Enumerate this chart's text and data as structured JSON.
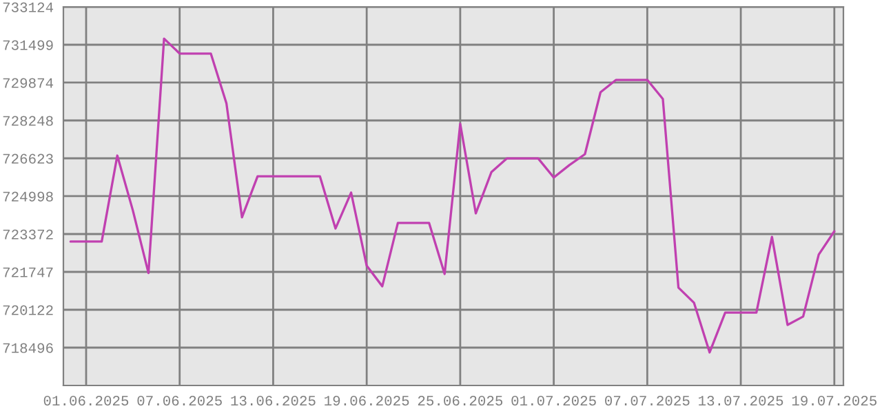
{
  "chart_data": {
    "type": "line",
    "x": [
      "2025-05-31",
      "2025-06-01",
      "2025-06-02",
      "2025-06-03",
      "2025-06-04",
      "2025-06-05",
      "2025-06-06",
      "2025-06-07",
      "2025-06-08",
      "2025-06-09",
      "2025-06-10",
      "2025-06-11",
      "2025-06-12",
      "2025-06-13",
      "2025-06-14",
      "2025-06-15",
      "2025-06-16",
      "2025-06-17",
      "2025-06-18",
      "2025-06-19",
      "2025-06-20",
      "2025-06-21",
      "2025-06-22",
      "2025-06-23",
      "2025-06-24",
      "2025-06-25",
      "2025-06-26",
      "2025-06-27",
      "2025-06-28",
      "2025-06-29",
      "2025-06-30",
      "2025-07-01",
      "2025-07-02",
      "2025-07-03",
      "2025-07-04",
      "2025-07-05",
      "2025-07-06",
      "2025-07-07",
      "2025-07-08",
      "2025-07-09",
      "2025-07-10",
      "2025-07-11",
      "2025-07-12",
      "2025-07-13",
      "2025-07-14",
      "2025-07-15",
      "2025-07-16",
      "2025-07-17",
      "2025-07-18",
      "2025-07-19"
    ],
    "series": [
      {
        "color": "#c040b0",
        "values": [
          723050,
          723050,
          723050,
          726740,
          724380,
          721700,
          731760,
          731120,
          731120,
          731120,
          728990,
          724090,
          725850,
          725850,
          725850,
          725850,
          725850,
          723610,
          725150,
          722010,
          721130,
          723850,
          723850,
          723850,
          721660,
          728100,
          724260,
          726030,
          726620,
          726620,
          726620,
          725800,
          726330,
          726800,
          729460,
          729990,
          729990,
          729990,
          729170,
          721070,
          720420,
          718290,
          720000,
          720000,
          720000,
          723250,
          719470,
          719830,
          722490,
          723490
        ]
      }
    ],
    "xlim": [
      "2025-05-30T13:00",
      "2025-07-19T14:00"
    ],
    "xticks": [
      {
        "value": "2025-06-01",
        "label": "01.06.2025"
      },
      {
        "value": "2025-06-07",
        "label": "07.06.2025"
      },
      {
        "value": "2025-06-13",
        "label": "13.06.2025"
      },
      {
        "value": "2025-06-19",
        "label": "19.06.2025"
      },
      {
        "value": "2025-06-25",
        "label": "25.06.2025"
      },
      {
        "value": "2025-07-01",
        "label": "01.07.2025"
      },
      {
        "value": "2025-07-07",
        "label": "07.07.2025"
      },
      {
        "value": "2025-07-13",
        "label": "13.07.2025"
      },
      {
        "value": "2025-07-19",
        "label": "19.07.2025"
      }
    ],
    "ylim": [
      716871,
      733124
    ],
    "yticks": [
      718496,
      720122,
      721747,
      723372,
      724998,
      726623,
      728248,
      729874,
      731499,
      733124
    ],
    "grid": true,
    "marker": "none",
    "line_style": "solid"
  }
}
